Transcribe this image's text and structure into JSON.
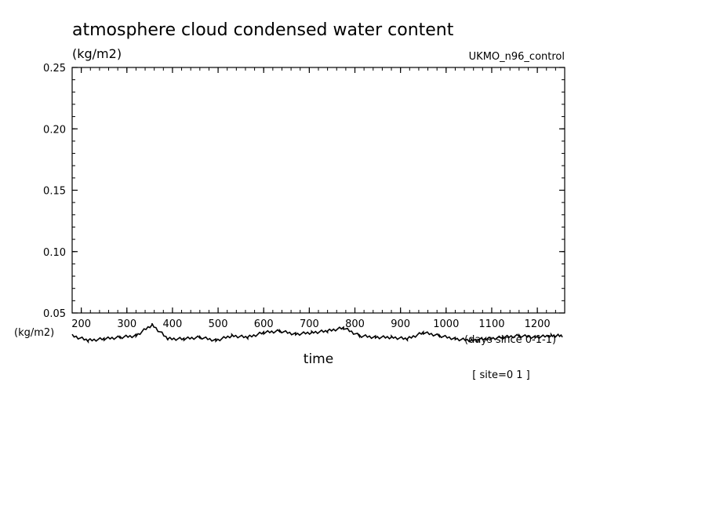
{
  "chart_data": {
    "type": "line",
    "title": "atmosphere cloud condensed water content",
    "ylabel": "(kg/m2)",
    "xlabel": "time",
    "source_label": "UKMO_n96_control",
    "x_units_label": "(days since 0-1-1)",
    "y_units_label_left": "(kg/m2)",
    "footnote": "[ site=0 1 ]",
    "ylim": [
      0.05,
      0.25
    ],
    "xlim": [
      180,
      1260
    ],
    "yticks": [
      "0.25",
      "0.20",
      "0.15",
      "0.10",
      "0.05"
    ],
    "xticks": [
      "200",
      "300",
      "400",
      "500",
      "600",
      "700",
      "800",
      "900",
      "1000",
      "1100",
      "1200"
    ],
    "grid": false,
    "series": [
      {
        "values_note": "",
        "x": [
          180,
          215,
          250,
          285,
          320,
          355,
          390,
          425,
          460,
          495,
          530,
          565,
          600,
          635,
          670,
          705,
          740,
          775,
          810,
          845,
          880,
          915,
          950,
          985,
          1020,
          1055,
          1090,
          1125,
          1160,
          1195,
          1230,
          1255
        ],
        "y": [
          0.031,
          0.0295,
          0.03,
          0.0305,
          0.031,
          0.0345,
          0.03,
          0.03,
          0.0305,
          0.0295,
          0.031,
          0.0305,
          0.032,
          0.0325,
          0.0315,
          0.032,
          0.0325,
          0.0335,
          0.031,
          0.0305,
          0.0305,
          0.03,
          0.032,
          0.031,
          0.03,
          0.0295,
          0.03,
          0.0305,
          0.031,
          0.0305,
          0.031,
          0.031
        ]
      }
    ],
    "line_color": "#000000"
  }
}
